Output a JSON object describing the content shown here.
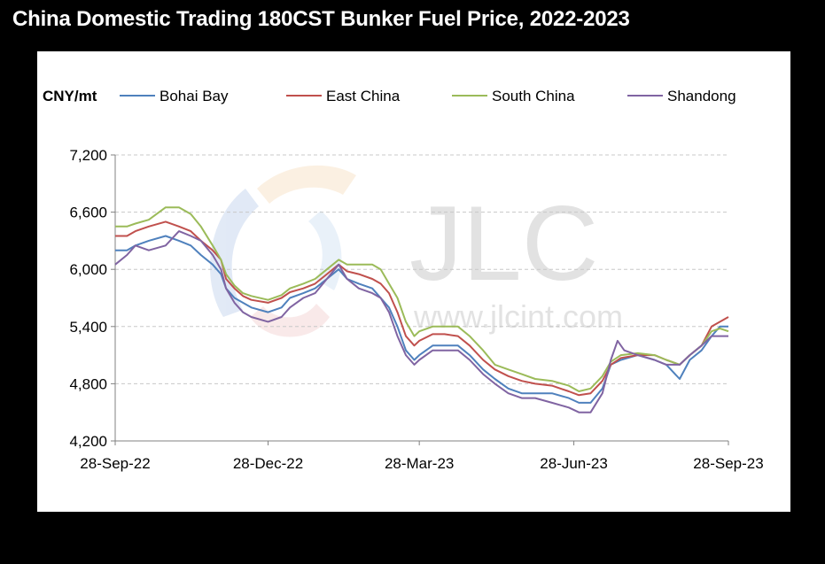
{
  "title": "China Domestic Trading 180CST Bunker Fuel Price, 2022-2023",
  "watermark": {
    "logo_text": "JLC",
    "url_text": "www.jlcint.com"
  },
  "chart_data": {
    "type": "line",
    "title": "China Domestic Trading 180CST Bunker Fuel Price, 2022-2023",
    "ylabel": "CNY/mt",
    "xlabel": "",
    "ylim": [
      4200,
      7200
    ],
    "yticks": [
      4200,
      4800,
      5400,
      6000,
      6600,
      7200
    ],
    "ytick_labels": [
      "4,200",
      "4,800",
      "5,400",
      "6,000",
      "6,600",
      "7,200"
    ],
    "xlim": [
      "2022-09-28",
      "2023-09-28"
    ],
    "xticks": [
      "2022-09-28",
      "2022-12-28",
      "2023-03-28",
      "2023-06-28",
      "2023-09-28"
    ],
    "xtick_labels": [
      "28-Sep-22",
      "28-Dec-22",
      "28-Mar-23",
      "28-Jun-23",
      "28-Sep-23"
    ],
    "grid": true,
    "legend_position": "top",
    "series": [
      {
        "name": "Bohai Bay",
        "color": "#4f81bd",
        "points": [
          [
            "2022-09-28",
            6200
          ],
          [
            "2022-10-05",
            6200
          ],
          [
            "2022-10-10",
            6250
          ],
          [
            "2022-10-18",
            6300
          ],
          [
            "2022-10-28",
            6350
          ],
          [
            "2022-11-05",
            6300
          ],
          [
            "2022-11-12",
            6250
          ],
          [
            "2022-11-18",
            6150
          ],
          [
            "2022-11-25",
            6050
          ],
          [
            "2022-11-30",
            5950
          ],
          [
            "2022-12-03",
            5800
          ],
          [
            "2022-12-08",
            5700
          ],
          [
            "2022-12-13",
            5650
          ],
          [
            "2022-12-18",
            5600
          ],
          [
            "2022-12-28",
            5550
          ],
          [
            "2023-01-05",
            5600
          ],
          [
            "2023-01-10",
            5700
          ],
          [
            "2023-01-18",
            5750
          ],
          [
            "2023-01-25",
            5800
          ],
          [
            "2023-02-01",
            5900
          ],
          [
            "2023-02-08",
            6000
          ],
          [
            "2023-02-13",
            5900
          ],
          [
            "2023-02-20",
            5850
          ],
          [
            "2023-02-28",
            5800
          ],
          [
            "2023-03-05",
            5700
          ],
          [
            "2023-03-10",
            5600
          ],
          [
            "2023-03-15",
            5400
          ],
          [
            "2023-03-20",
            5150
          ],
          [
            "2023-03-25",
            5050
          ],
          [
            "2023-03-28",
            5100
          ],
          [
            "2023-04-05",
            5200
          ],
          [
            "2023-04-12",
            5200
          ],
          [
            "2023-04-20",
            5200
          ],
          [
            "2023-04-27",
            5100
          ],
          [
            "2023-05-05",
            4950
          ],
          [
            "2023-05-12",
            4850
          ],
          [
            "2023-05-20",
            4750
          ],
          [
            "2023-05-28",
            4700
          ],
          [
            "2023-06-05",
            4700
          ],
          [
            "2023-06-15",
            4700
          ],
          [
            "2023-06-25",
            4650
          ],
          [
            "2023-07-01",
            4600
          ],
          [
            "2023-07-08",
            4600
          ],
          [
            "2023-07-15",
            4750
          ],
          [
            "2023-07-20",
            5000
          ],
          [
            "2023-07-26",
            5050
          ],
          [
            "2023-08-05",
            5100
          ],
          [
            "2023-08-15",
            5050
          ],
          [
            "2023-08-22",
            5000
          ],
          [
            "2023-08-30",
            4850
          ],
          [
            "2023-09-05",
            5050
          ],
          [
            "2023-09-12",
            5150
          ],
          [
            "2023-09-18",
            5300
          ],
          [
            "2023-09-23",
            5400
          ],
          [
            "2023-09-28",
            5400
          ]
        ]
      },
      {
        "name": "East China",
        "color": "#c0504d",
        "points": [
          [
            "2022-09-28",
            6350
          ],
          [
            "2022-10-05",
            6350
          ],
          [
            "2022-10-10",
            6400
          ],
          [
            "2022-10-18",
            6450
          ],
          [
            "2022-10-28",
            6500
          ],
          [
            "2022-11-05",
            6450
          ],
          [
            "2022-11-12",
            6400
          ],
          [
            "2022-11-18",
            6300
          ],
          [
            "2022-11-25",
            6200
          ],
          [
            "2022-11-30",
            6100
          ],
          [
            "2022-12-03",
            5900
          ],
          [
            "2022-12-08",
            5800
          ],
          [
            "2022-12-13",
            5720
          ],
          [
            "2022-12-18",
            5680
          ],
          [
            "2022-12-28",
            5650
          ],
          [
            "2023-01-05",
            5700
          ],
          [
            "2023-01-10",
            5760
          ],
          [
            "2023-01-18",
            5800
          ],
          [
            "2023-01-25",
            5850
          ],
          [
            "2023-02-01",
            5950
          ],
          [
            "2023-02-08",
            6050
          ],
          [
            "2023-02-13",
            5980
          ],
          [
            "2023-02-20",
            5950
          ],
          [
            "2023-02-28",
            5900
          ],
          [
            "2023-03-05",
            5850
          ],
          [
            "2023-03-10",
            5750
          ],
          [
            "2023-03-15",
            5550
          ],
          [
            "2023-03-20",
            5300
          ],
          [
            "2023-03-25",
            5200
          ],
          [
            "2023-03-28",
            5250
          ],
          [
            "2023-04-05",
            5320
          ],
          [
            "2023-04-12",
            5320
          ],
          [
            "2023-04-20",
            5300
          ],
          [
            "2023-04-27",
            5200
          ],
          [
            "2023-05-05",
            5050
          ],
          [
            "2023-05-12",
            4950
          ],
          [
            "2023-05-20",
            4880
          ],
          [
            "2023-05-28",
            4830
          ],
          [
            "2023-06-05",
            4800
          ],
          [
            "2023-06-15",
            4780
          ],
          [
            "2023-06-25",
            4720
          ],
          [
            "2023-07-01",
            4680
          ],
          [
            "2023-07-08",
            4700
          ],
          [
            "2023-07-15",
            4830
          ],
          [
            "2023-07-20",
            5000
          ],
          [
            "2023-07-26",
            5070
          ],
          [
            "2023-08-05",
            5100
          ],
          [
            "2023-08-15",
            5100
          ],
          [
            "2023-08-22",
            5050
          ],
          [
            "2023-08-30",
            5000
          ],
          [
            "2023-09-05",
            5100
          ],
          [
            "2023-09-12",
            5200
          ],
          [
            "2023-09-18",
            5400
          ],
          [
            "2023-09-23",
            5450
          ],
          [
            "2023-09-28",
            5500
          ]
        ]
      },
      {
        "name": "South China",
        "color": "#9bbb59",
        "points": [
          [
            "2022-09-28",
            6450
          ],
          [
            "2022-10-05",
            6450
          ],
          [
            "2022-10-10",
            6480
          ],
          [
            "2022-10-18",
            6520
          ],
          [
            "2022-10-28",
            6650
          ],
          [
            "2022-11-05",
            6650
          ],
          [
            "2022-11-12",
            6580
          ],
          [
            "2022-11-18",
            6450
          ],
          [
            "2022-11-25",
            6250
          ],
          [
            "2022-11-30",
            6100
          ],
          [
            "2022-12-03",
            5950
          ],
          [
            "2022-12-08",
            5830
          ],
          [
            "2022-12-13",
            5750
          ],
          [
            "2022-12-18",
            5720
          ],
          [
            "2022-12-28",
            5680
          ],
          [
            "2023-01-05",
            5730
          ],
          [
            "2023-01-10",
            5800
          ],
          [
            "2023-01-18",
            5850
          ],
          [
            "2023-01-25",
            5900
          ],
          [
            "2023-02-01",
            6000
          ],
          [
            "2023-02-08",
            6100
          ],
          [
            "2023-02-13",
            6050
          ],
          [
            "2023-02-20",
            6050
          ],
          [
            "2023-02-28",
            6050
          ],
          [
            "2023-03-05",
            6000
          ],
          [
            "2023-03-10",
            5850
          ],
          [
            "2023-03-15",
            5700
          ],
          [
            "2023-03-20",
            5450
          ],
          [
            "2023-03-25",
            5300
          ],
          [
            "2023-03-28",
            5350
          ],
          [
            "2023-04-05",
            5400
          ],
          [
            "2023-04-12",
            5400
          ],
          [
            "2023-04-20",
            5400
          ],
          [
            "2023-04-27",
            5300
          ],
          [
            "2023-05-05",
            5150
          ],
          [
            "2023-05-12",
            5000
          ],
          [
            "2023-05-20",
            4950
          ],
          [
            "2023-05-28",
            4900
          ],
          [
            "2023-06-05",
            4850
          ],
          [
            "2023-06-15",
            4830
          ],
          [
            "2023-06-25",
            4780
          ],
          [
            "2023-07-01",
            4720
          ],
          [
            "2023-07-08",
            4750
          ],
          [
            "2023-07-15",
            4880
          ],
          [
            "2023-07-20",
            5030
          ],
          [
            "2023-07-26",
            5100
          ],
          [
            "2023-08-05",
            5120
          ],
          [
            "2023-08-15",
            5100
          ],
          [
            "2023-08-22",
            5050
          ],
          [
            "2023-08-30",
            5000
          ],
          [
            "2023-09-05",
            5100
          ],
          [
            "2023-09-12",
            5200
          ],
          [
            "2023-09-18",
            5350
          ],
          [
            "2023-09-23",
            5380
          ],
          [
            "2023-09-28",
            5350
          ]
        ]
      },
      {
        "name": "Shandong",
        "color": "#8064a2",
        "points": [
          [
            "2022-09-28",
            6050
          ],
          [
            "2022-10-05",
            6150
          ],
          [
            "2022-10-10",
            6250
          ],
          [
            "2022-10-18",
            6200
          ],
          [
            "2022-10-28",
            6250
          ],
          [
            "2022-11-05",
            6400
          ],
          [
            "2022-11-12",
            6350
          ],
          [
            "2022-11-18",
            6300
          ],
          [
            "2022-11-25",
            6150
          ],
          [
            "2022-11-30",
            6000
          ],
          [
            "2022-12-03",
            5800
          ],
          [
            "2022-12-08",
            5650
          ],
          [
            "2022-12-13",
            5550
          ],
          [
            "2022-12-18",
            5500
          ],
          [
            "2022-12-28",
            5450
          ],
          [
            "2023-01-05",
            5500
          ],
          [
            "2023-01-10",
            5600
          ],
          [
            "2023-01-18",
            5700
          ],
          [
            "2023-01-25",
            5750
          ],
          [
            "2023-02-01",
            5900
          ],
          [
            "2023-02-08",
            6050
          ],
          [
            "2023-02-13",
            5900
          ],
          [
            "2023-02-20",
            5800
          ],
          [
            "2023-02-28",
            5750
          ],
          [
            "2023-03-05",
            5700
          ],
          [
            "2023-03-10",
            5550
          ],
          [
            "2023-03-15",
            5300
          ],
          [
            "2023-03-20",
            5100
          ],
          [
            "2023-03-25",
            5000
          ],
          [
            "2023-03-28",
            5050
          ],
          [
            "2023-04-05",
            5150
          ],
          [
            "2023-04-12",
            5150
          ],
          [
            "2023-04-20",
            5150
          ],
          [
            "2023-04-27",
            5050
          ],
          [
            "2023-05-05",
            4900
          ],
          [
            "2023-05-12",
            4800
          ],
          [
            "2023-05-20",
            4700
          ],
          [
            "2023-05-28",
            4650
          ],
          [
            "2023-06-05",
            4650
          ],
          [
            "2023-06-15",
            4600
          ],
          [
            "2023-06-25",
            4550
          ],
          [
            "2023-07-01",
            4500
          ],
          [
            "2023-07-08",
            4500
          ],
          [
            "2023-07-15",
            4700
          ],
          [
            "2023-07-20",
            5050
          ],
          [
            "2023-07-24",
            5250
          ],
          [
            "2023-07-28",
            5150
          ],
          [
            "2023-08-05",
            5100
          ],
          [
            "2023-08-15",
            5050
          ],
          [
            "2023-08-22",
            5000
          ],
          [
            "2023-08-30",
            5000
          ],
          [
            "2023-09-05",
            5100
          ],
          [
            "2023-09-12",
            5200
          ],
          [
            "2023-09-18",
            5300
          ],
          [
            "2023-09-23",
            5300
          ],
          [
            "2023-09-28",
            5300
          ]
        ]
      }
    ]
  }
}
